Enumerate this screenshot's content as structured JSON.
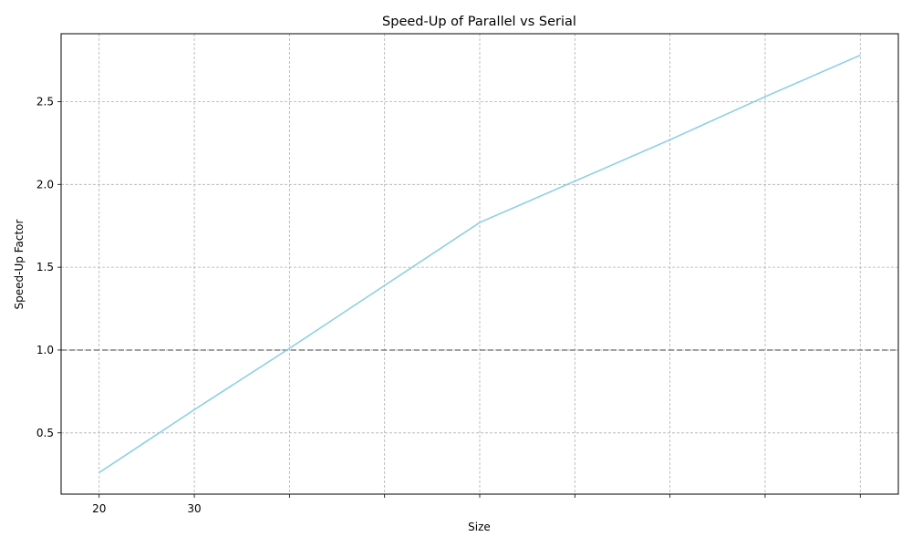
{
  "chart_data": {
    "type": "line",
    "title": "Speed-Up of Parallel vs Serial",
    "xlabel": "Size",
    "ylabel": "Speed-Up Factor",
    "x": [
      20,
      30,
      40,
      50,
      60,
      70,
      80,
      90,
      100
    ],
    "x_tick_values": [
      20,
      30,
      40,
      50,
      60,
      70,
      80,
      90,
      100
    ],
    "x_tick_labels": [
      "20",
      "30",
      "",
      "",
      "",
      "",
      "",
      "",
      ""
    ],
    "xlim": [
      16,
      104
    ],
    "y_ticks": [
      0.5,
      1.0,
      1.5,
      2.0,
      2.5
    ],
    "y_tick_labels": [
      "0.5",
      "1.0",
      "1.5",
      "2.0",
      "2.5"
    ],
    "ylim": [
      0.13,
      2.91
    ],
    "grid": true,
    "reference_line": {
      "y": 1.0,
      "style": "dashed"
    },
    "series": [
      {
        "color": "#87ceeb",
        "values": [
          0.26,
          0.64,
          1.01,
          1.39,
          1.77,
          2.02,
          2.27,
          2.53,
          2.78
        ]
      }
    ],
    "reference_color": "#808080",
    "grid_color": "#b0b0b0"
  }
}
